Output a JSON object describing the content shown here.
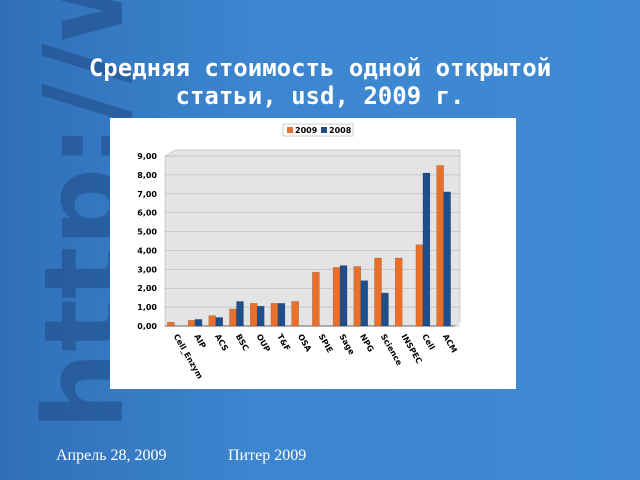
{
  "chart_data": {
    "type": "bar",
    "title": "Средняя стоимость одной открытой статьи, usd, 2009 г.",
    "categories": [
      "Cell_Enzym",
      "AIP",
      "ACS",
      "BSC",
      "OUP",
      "T&F",
      "OSA",
      "SPIE",
      "Sage",
      "NPG",
      "Science",
      "INSPEC",
      "Cell",
      "ACM"
    ],
    "series": [
      {
        "name": "2009",
        "color": "#e8702a",
        "values": [
          0.2,
          0.3,
          0.55,
          0.9,
          1.2,
          1.2,
          1.3,
          2.85,
          3.1,
          3.15,
          3.6,
          3.6,
          4.3,
          8.5
        ]
      },
      {
        "name": "2008",
        "color": "#1f4e8c",
        "values": [
          null,
          0.35,
          0.45,
          1.3,
          1.05,
          1.2,
          null,
          null,
          3.2,
          2.4,
          1.75,
          null,
          8.1,
          7.1
        ]
      }
    ],
    "ylim": [
      0,
      9
    ],
    "yticks": [
      {
        "value": 0,
        "label": "0,00"
      },
      {
        "value": 1,
        "label": "1,00"
      },
      {
        "value": 2,
        "label": "2,00"
      },
      {
        "value": 3,
        "label": "3,00"
      },
      {
        "value": 4,
        "label": "4,00"
      },
      {
        "value": 5,
        "label": "5,00"
      },
      {
        "value": 6,
        "label": "6,00"
      },
      {
        "value": 7,
        "label": "7,00"
      },
      {
        "value": 8,
        "label": "8,00"
      },
      {
        "value": 9,
        "label": "9,00"
      }
    ],
    "grid": true,
    "legend": "top"
  },
  "footer": {
    "date": "Апрель 28, 2009",
    "event": "Питер 2009"
  }
}
